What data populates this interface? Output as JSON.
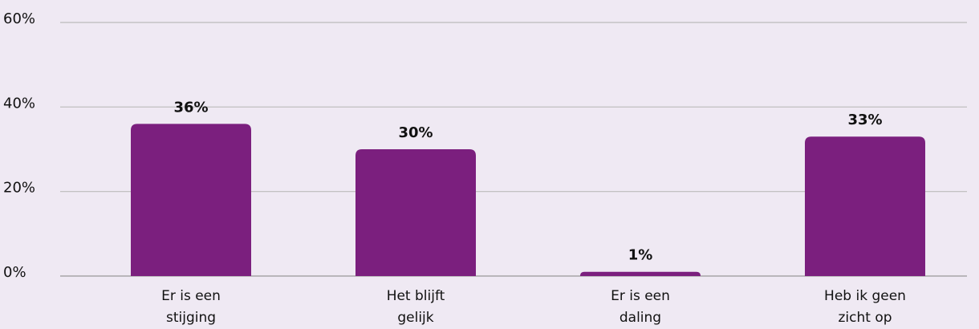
{
  "chart_data": {
    "type": "bar",
    "categories": [
      "Er is een stijging",
      "Het blijft gelijk",
      "Er is een daling",
      "Heb ik geen zicht op"
    ],
    "values": [
      36,
      30,
      1,
      33
    ],
    "value_labels": [
      "36%",
      "30%",
      "1%",
      "33%"
    ],
    "color": "#7b1f7e",
    "ylim": [
      0,
      60
    ],
    "yticks": [
      {
        "value": 0,
        "label": "0%"
      },
      {
        "value": 20,
        "label": "20%"
      },
      {
        "value": 40,
        "label": "40%"
      },
      {
        "value": 60,
        "label": "60%"
      }
    ],
    "grid": true
  }
}
